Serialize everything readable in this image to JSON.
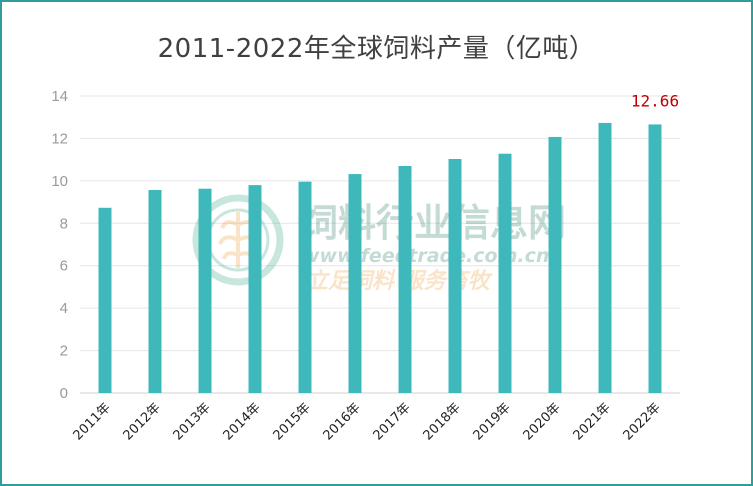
{
  "chart_data": {
    "type": "bar",
    "title": "2011-2022年全球饲料产量（亿吨）",
    "categories": [
      "2011年",
      "2012年",
      "2013年",
      "2014年",
      "2015年",
      "2016年",
      "2017年",
      "2018年",
      "2019年",
      "2020年",
      "2021年",
      "2022年"
    ],
    "values": [
      8.73,
      9.57,
      9.63,
      9.8,
      9.96,
      10.32,
      10.7,
      11.03,
      11.28,
      12.07,
      12.73,
      12.66
    ],
    "yticks": [
      0,
      2,
      4,
      6,
      8,
      10,
      12,
      14
    ],
    "ylim": [
      0,
      14
    ],
    "xlabel": "",
    "ylabel": "",
    "grid": true,
    "bar_color": "#3fb8bb",
    "grid_color": "#e6e6e6",
    "data_labels": [
      {
        "index": 11,
        "text": "12.66",
        "color": "#c00000"
      }
    ]
  },
  "watermark": {
    "name": "饲料行业信息网",
    "url": "www.feedtrade.com.cn",
    "slogan": "立足饲料  服务畜牧",
    "colors": {
      "name": "#2f7d6b",
      "url": "#2f7d6b",
      "slogan": "#f0a040",
      "logo": "#3aa88c"
    }
  },
  "frame_color": "#2f9e9a"
}
